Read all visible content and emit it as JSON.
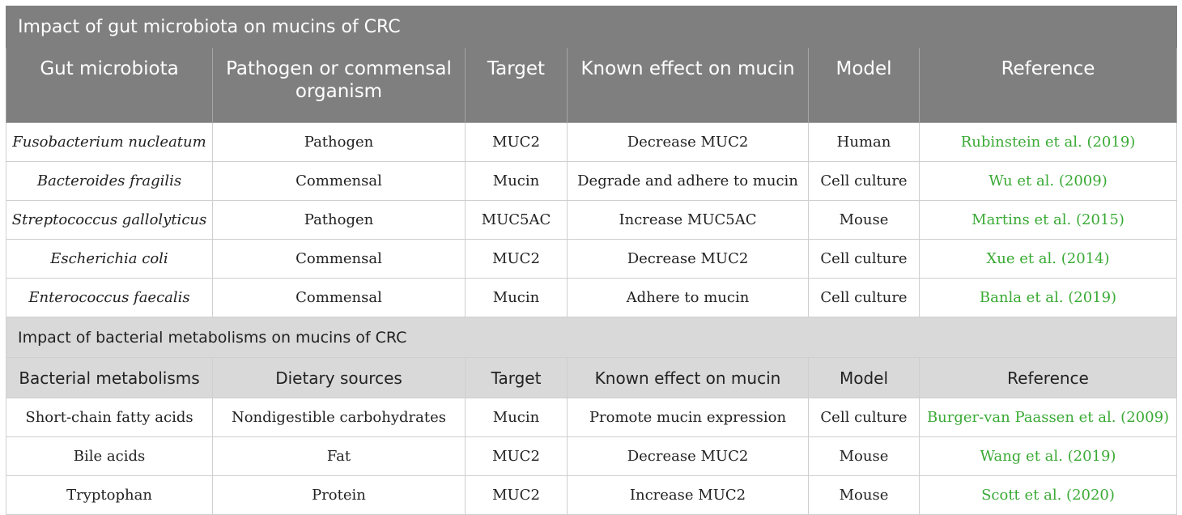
{
  "section1": {
    "title": "Impact of gut microbiota on mucins of CRC",
    "headers": [
      "Gut microbiota",
      "Pathogen or commensal organism",
      "Target",
      "Known effect on mucin",
      "Model",
      "Reference"
    ],
    "rows": [
      [
        "Fusobacterium nucleatum",
        "Pathogen",
        "MUC2",
        "Decrease MUC2",
        "Human",
        "Rubinstein et al. (2019)"
      ],
      [
        "Bacteroides fragilis",
        "Commensal",
        "Mucin",
        "Degrade and adhere to mucin",
        "Cell culture",
        "Wu et al. (2009)"
      ],
      [
        "Streptococcus gallolyticus",
        "Pathogen",
        "MUC5AC",
        "Increase MUC5AC",
        "Mouse",
        "Martins et al. (2015)"
      ],
      [
        "Escherichia coli",
        "Commensal",
        "MUC2",
        "Decrease MUC2",
        "Cell culture",
        "Xue et al. (2014)"
      ],
      [
        "Enterococcus faecalis",
        "Commensal",
        "Mucin",
        "Adhere to mucin",
        "Cell culture",
        "Banla et al. (2019)"
      ]
    ]
  },
  "section2": {
    "title": "Impact of bacterial metabolisms on mucins of CRC",
    "headers": [
      "Bacterial metabolisms",
      "Dietary sources",
      "Target",
      "Known effect on mucin",
      "Model",
      "Reference"
    ],
    "rows": [
      [
        "Short-chain fatty acids",
        "Nondigestible carbohydrates",
        "Mucin",
        "Promote mucin expression",
        "Cell culture",
        "Burger-van Paassen et al. (2009)"
      ],
      [
        "Bile acids",
        "Fat",
        "MUC2",
        "Decrease MUC2",
        "Mouse",
        "Wang et al. (2019)"
      ],
      [
        "Tryptophan",
        "Protein",
        "MUC2",
        "Increase MUC2",
        "Mouse",
        "Scott et al. (2020)"
      ]
    ]
  },
  "colors": {
    "dark_header": "#7f7f7f",
    "light_header": "#d9d9d9",
    "reference_link": "#3aaa35"
  }
}
